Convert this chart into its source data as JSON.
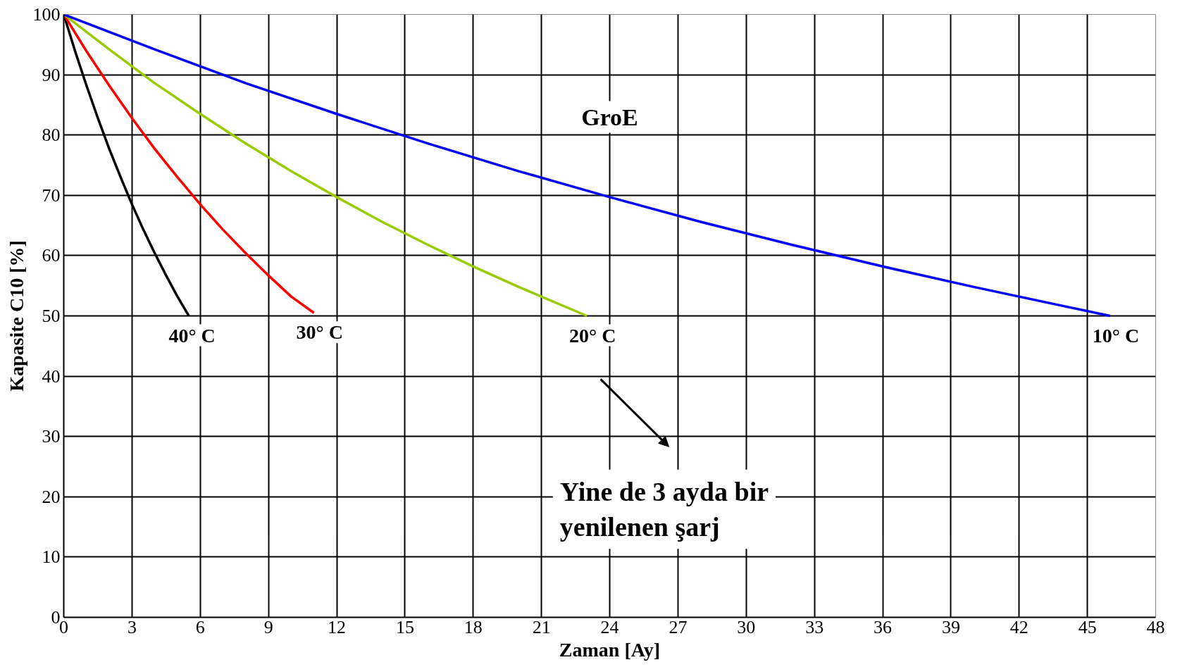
{
  "chart_data": {
    "type": "line",
    "xlabel": "Zaman [Ay]",
    "ylabel": "Kapasite C10 [%]",
    "series": [
      {
        "name": "40°  C",
        "color": "#000000",
        "x": [
          0,
          0.5,
          1,
          1.5,
          2,
          2.5,
          3,
          3.5,
          4,
          4.5,
          5,
          5.5
        ],
        "values": [
          100,
          93.9,
          88.2,
          82.8,
          77.7,
          73.0,
          68.5,
          64.3,
          60.4,
          56.7,
          53.2,
          50
        ]
      },
      {
        "name": "30° C",
        "color": "#ff0000",
        "x": [
          0,
          1,
          2,
          3,
          4,
          5,
          6,
          7,
          8,
          9,
          10,
          11
        ],
        "values": [
          100,
          93.9,
          88.2,
          82.8,
          77.7,
          73.0,
          68.5,
          64.3,
          60.4,
          56.7,
          53.2,
          50.5
        ]
      },
      {
        "name": "20° C",
        "color": "#99cc00",
        "x": [
          0,
          2,
          4,
          6,
          8,
          10,
          12,
          14,
          16,
          18,
          20,
          23
        ],
        "values": [
          100,
          94.2,
          88.6,
          83.5,
          78.6,
          74.0,
          69.7,
          65.6,
          61.8,
          58.2,
          54.8,
          50
        ]
      },
      {
        "name": "10° C",
        "color": "#0000ff",
        "x": [
          0,
          4,
          8,
          12,
          16,
          20,
          24,
          28,
          32,
          36,
          40,
          46
        ],
        "values": [
          100,
          94.2,
          88.6,
          83.5,
          78.6,
          74.0,
          69.7,
          65.6,
          61.8,
          58.2,
          54.8,
          50
        ]
      }
    ],
    "xlim": [
      0,
      48
    ],
    "xticks": [
      0,
      3,
      6,
      9,
      12,
      15,
      18,
      21,
      24,
      27,
      30,
      33,
      36,
      39,
      42,
      45,
      48
    ],
    "ylim": [
      0,
      100
    ],
    "yticks": [
      0,
      10,
      20,
      30,
      40,
      50,
      60,
      70,
      80,
      90,
      100
    ],
    "grid": true,
    "marker": "none",
    "line_style": "solid",
    "annotations": [
      "GroE",
      "Yine de 3 ayda bir\nyenilenen şarj"
    ]
  }
}
